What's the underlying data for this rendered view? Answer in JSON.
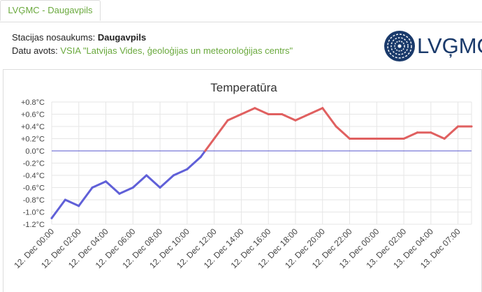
{
  "tab": {
    "label": "LVĢMC - Daugavpils"
  },
  "info": {
    "station_label": "Stacijas nosaukums:",
    "station_name": "Daugavpils",
    "source_label": "Datu avots:",
    "source_name": "VSIA \"Latvijas Vides, ģeoloģijas un meteoroloģijas centrs\""
  },
  "logo": {
    "text": "LVĢMC",
    "color": "#1a3a6b"
  },
  "colors": {
    "cold": "#6060d8",
    "warm": "#e06060",
    "zero_line": "#5555cc",
    "grid": "#e6e6e6"
  },
  "chart_data": {
    "type": "line",
    "title": "Temperatūra",
    "unit": "°C",
    "ylim": [
      -1.2,
      0.8
    ],
    "yticks": [
      0.8,
      0.6,
      0.4,
      0.2,
      0.0,
      -0.2,
      -0.4,
      -0.6,
      -0.8,
      -1.0,
      -1.2
    ],
    "ytick_labels": [
      "+0.8°C",
      "+0.6°C",
      "+0.4°C",
      "+0.2°C",
      "0.0°C",
      "-0.2°C",
      "-0.4°C",
      "-0.6°C",
      "-0.8°C",
      "-1.0°C",
      "-1.2°C"
    ],
    "xtick_labels": [
      "12. Dec 00:00",
      "12. Dec 02:00",
      "12. Dec 04:00",
      "12. Dec 06:00",
      "12. Dec 08:00",
      "12. Dec 10:00",
      "12. Dec 12:00",
      "12. Dec 14:00",
      "12. Dec 16:00",
      "12. Dec 18:00",
      "12. Dec 20:00",
      "12. Dec 22:00",
      "13. Dec 00:00",
      "13. Dec 02:00",
      "13. Dec 04:00",
      "13. Dec 07:00"
    ],
    "x": [
      "12. Dec 00:00",
      "12. Dec 01:00",
      "12. Dec 02:00",
      "12. Dec 03:00",
      "12. Dec 04:00",
      "12. Dec 05:00",
      "12. Dec 06:00",
      "12. Dec 07:00",
      "12. Dec 08:00",
      "12. Dec 09:00",
      "12. Dec 10:00",
      "12. Dec 11:00",
      "12. Dec 12:00",
      "12. Dec 13:00",
      "12. Dec 14:00",
      "12. Dec 15:00",
      "12. Dec 16:00",
      "12. Dec 17:00",
      "12. Dec 18:00",
      "12. Dec 19:00",
      "12. Dec 20:00",
      "12. Dec 21:00",
      "12. Dec 22:00",
      "12. Dec 23:00",
      "13. Dec 00:00",
      "13. Dec 01:00",
      "13. Dec 02:00",
      "13. Dec 03:00",
      "13. Dec 04:00",
      "13. Dec 05:00",
      "13. Dec 06:00",
      "13. Dec 07:00"
    ],
    "values": [
      -1.1,
      -0.8,
      -0.9,
      -0.6,
      -0.5,
      -0.7,
      -0.6,
      -0.4,
      -0.6,
      -0.4,
      -0.3,
      -0.1,
      0.2,
      0.5,
      0.6,
      0.7,
      0.6,
      0.6,
      0.5,
      0.6,
      0.7,
      0.4,
      0.2,
      0.2,
      0.2,
      0.2,
      0.2,
      0.3,
      0.3,
      0.2,
      0.4,
      0.4
    ],
    "grid": true,
    "legend": "none"
  }
}
